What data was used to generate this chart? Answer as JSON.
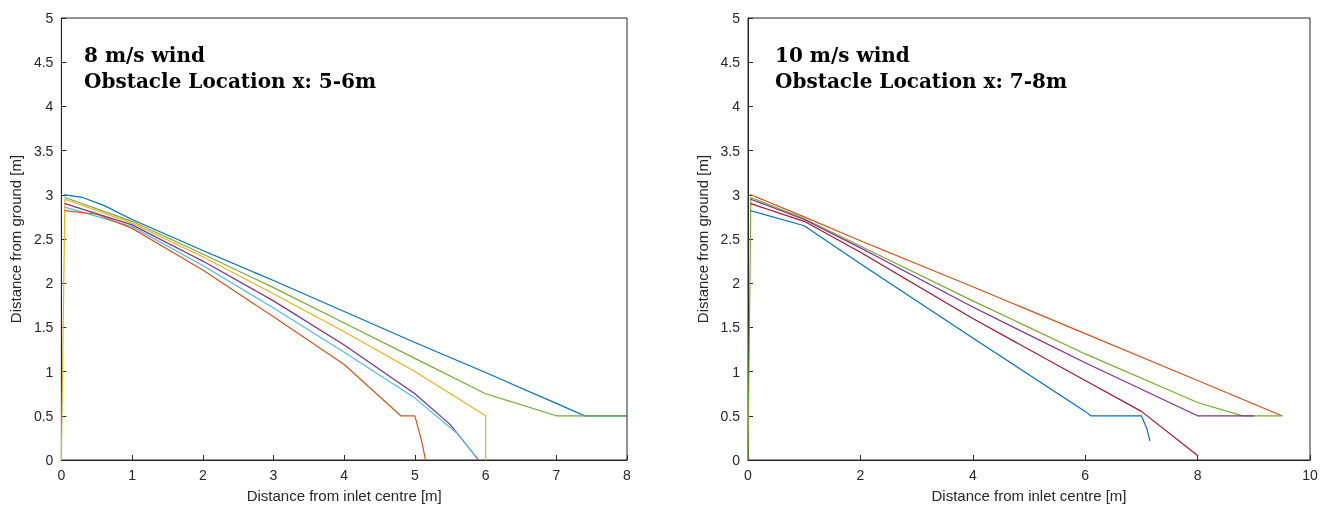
{
  "chart_data": [
    {
      "type": "line",
      "title": "8 m/s wind",
      "subtitle": "Obstacle Location x: 5-6m",
      "xlabel": "Distance from inlet centre [m]",
      "ylabel": "Distance from ground [m]",
      "xlim": [
        0,
        8
      ],
      "ylim": [
        0,
        5
      ],
      "xticks": [
        0,
        1,
        2,
        3,
        4,
        5,
        6,
        7,
        8
      ],
      "yticks": [
        0,
        0.5,
        1,
        1.5,
        2,
        2.5,
        3,
        3.5,
        4,
        4.5,
        5
      ],
      "marker": "none",
      "line_style": "solid",
      "series": [
        {
          "color": "#0072bd",
          "x": [
            0.05,
            0.3,
            0.6,
            1,
            2,
            3,
            4,
            5,
            6,
            7,
            7.4,
            8
          ],
          "values": [
            3.0,
            2.97,
            2.88,
            2.72,
            2.37,
            2.03,
            1.68,
            1.33,
            0.99,
            0.64,
            0.5,
            0.5
          ]
        },
        {
          "color": "#77ac30",
          "x": [
            0.05,
            1,
            2,
            3,
            4,
            5,
            6,
            7,
            8
          ],
          "values": [
            2.97,
            2.7,
            2.33,
            1.95,
            1.55,
            1.15,
            0.75,
            0.5,
            0.5
          ]
        },
        {
          "color": "#edb120",
          "x": [
            0,
            0.05,
            1,
            2,
            3,
            4,
            5,
            6,
            6
          ],
          "values": [
            0,
            2.95,
            2.68,
            2.3,
            1.88,
            1.45,
            1.0,
            0.5,
            0
          ]
        },
        {
          "color": "#7e2f8e",
          "x": [
            0.05,
            1,
            2,
            3,
            4,
            5,
            5.5,
            5.9
          ],
          "values": [
            2.9,
            2.66,
            2.25,
            1.8,
            1.3,
            0.75,
            0.4,
            0
          ]
        },
        {
          "color": "#4dbeee",
          "x": [
            0.05,
            1,
            2,
            3,
            4,
            5,
            5.6,
            5.85
          ],
          "values": [
            2.86,
            2.64,
            2.2,
            1.72,
            1.22,
            0.7,
            0.3,
            0.05
          ]
        },
        {
          "color": "#d95319",
          "x": [
            0.05,
            0.5,
            1,
            2,
            3,
            4,
            4.8,
            5.0,
            5.1,
            5.15
          ],
          "values": [
            2.82,
            2.78,
            2.62,
            2.15,
            1.62,
            1.08,
            0.5,
            0.5,
            0.2,
            0
          ]
        }
      ]
    },
    {
      "type": "line",
      "title": "10 m/s wind",
      "subtitle": "Obstacle Location x: 7-8m",
      "xlabel": "Distance from inlet centre [m]",
      "ylabel": "Distance from ground [m]",
      "xlim": [
        0,
        10
      ],
      "ylim": [
        0,
        5
      ],
      "xticks": [
        0,
        2,
        4,
        6,
        8,
        10
      ],
      "yticks": [
        0,
        0.5,
        1,
        1.5,
        2,
        2.5,
        3,
        3.5,
        4,
        4.5,
        5
      ],
      "marker": "none",
      "line_style": "solid",
      "series": [
        {
          "color": "#d95319",
          "x": [
            0.05,
            1,
            2,
            4,
            6,
            8,
            9.5
          ],
          "values": [
            3.0,
            2.75,
            2.48,
            1.96,
            1.43,
            0.9,
            0.5
          ]
        },
        {
          "color": "#77ac30",
          "x": [
            0,
            0.05,
            1,
            2,
            4,
            6,
            8,
            8.8,
            9.5
          ],
          "values": [
            0,
            2.97,
            2.73,
            2.42,
            1.8,
            1.2,
            0.65,
            0.5,
            0.5
          ]
        },
        {
          "color": "#7e2f8e",
          "x": [
            0.05,
            1,
            2,
            4,
            6,
            7,
            8,
            9
          ],
          "values": [
            2.95,
            2.72,
            2.4,
            1.73,
            1.1,
            0.8,
            0.5,
            0.5
          ]
        },
        {
          "color": "#a2142f",
          "x": [
            0.05,
            1,
            2,
            4,
            6,
            7,
            8
          ],
          "values": [
            2.9,
            2.7,
            2.35,
            1.6,
            0.9,
            0.55,
            0.05
          ]
        },
        {
          "color": "#0072bd",
          "x": [
            0.05,
            1,
            2,
            4,
            6,
            6.1,
            7,
            7.1,
            7.15
          ],
          "values": [
            2.82,
            2.65,
            2.22,
            1.38,
            0.55,
            0.5,
            0.5,
            0.35,
            0.22
          ]
        }
      ]
    }
  ]
}
